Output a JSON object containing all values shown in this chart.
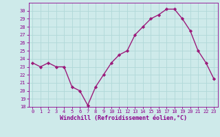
{
  "x": [
    0,
    1,
    2,
    3,
    4,
    5,
    6,
    7,
    8,
    9,
    10,
    11,
    12,
    13,
    14,
    15,
    16,
    17,
    18,
    19,
    20,
    21,
    22,
    23
  ],
  "y": [
    23.5,
    23.0,
    23.5,
    23.0,
    23.0,
    20.5,
    20.0,
    18.2,
    20.5,
    22.0,
    23.5,
    24.5,
    25.0,
    27.0,
    28.0,
    29.0,
    29.5,
    30.2,
    30.2,
    29.0,
    27.5,
    25.0,
    23.5,
    21.5
  ],
  "line_color": "#9b1a7a",
  "marker": "D",
  "marker_size": 2.2,
  "xlabel": "Windchill (Refroidissement éolien,°C)",
  "ylim": [
    18,
    31
  ],
  "xlim": [
    -0.5,
    23.5
  ],
  "yticks": [
    18,
    19,
    20,
    21,
    22,
    23,
    24,
    25,
    26,
    27,
    28,
    29,
    30
  ],
  "xticks": [
    0,
    1,
    2,
    3,
    4,
    5,
    6,
    7,
    8,
    9,
    10,
    11,
    12,
    13,
    14,
    15,
    16,
    17,
    18,
    19,
    20,
    21,
    22,
    23
  ],
  "bg_color": "#ceeaea",
  "grid_color": "#b0d8d8",
  "tick_color": "#8b008b",
  "label_color": "#8b008b",
  "tick_fontsize": 5.0,
  "xlabel_fontsize": 6.0,
  "line_width": 1.0
}
